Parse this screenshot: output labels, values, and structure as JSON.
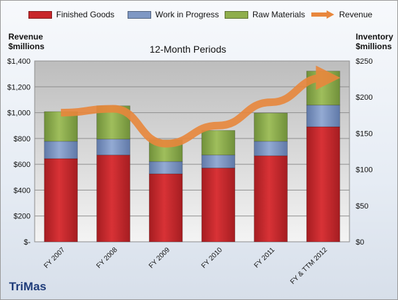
{
  "legend": {
    "finished_goods": "Finished Goods",
    "work_in_progress": "Work in Progress",
    "raw_materials": "Raw Materials",
    "revenue": "Revenue"
  },
  "left_axis_title": [
    "Revenue",
    "$millions"
  ],
  "right_axis_title": [
    "Inventory",
    "$millions"
  ],
  "brand": "TriMas",
  "colors": {
    "finished_goods": "#c8272b",
    "work_in_progress": "#7f98c4",
    "raw_materials": "#8fae4c",
    "revenue": "#e8873c"
  },
  "chart_data": {
    "type": "bar",
    "stacked": true,
    "title": "12-Month Periods",
    "categories": [
      "FY 2007",
      "FY 2008",
      "FY 2009",
      "FY 2010",
      "FY 2011",
      "FY & TTM 2012"
    ],
    "series": [
      {
        "name": "Finished Goods",
        "axis": "right",
        "values": [
          115,
          120,
          94,
          102,
          119,
          159
        ]
      },
      {
        "name": "Work in Progress",
        "axis": "right",
        "values": [
          24,
          22,
          17,
          18,
          20,
          30
        ]
      },
      {
        "name": "Raw Materials",
        "axis": "right",
        "values": [
          41,
          46,
          30,
          34,
          39,
          47
        ]
      },
      {
        "name": "Revenue",
        "type": "line",
        "axis": "left",
        "values": [
          1000,
          1030,
          760,
          900,
          1080,
          1270
        ]
      }
    ],
    "left_axis": {
      "ylim": [
        0,
        1400
      ],
      "ticks": [
        0,
        200,
        400,
        600,
        800,
        1000,
        1200,
        1400
      ],
      "tick_labels": [
        "$-",
        "$200",
        "$400",
        "$600",
        "$800",
        "$1,000",
        "$1,200",
        "$1,400"
      ]
    },
    "right_axis": {
      "ylim": [
        0,
        250
      ],
      "ticks": [
        0,
        50,
        100,
        150,
        200,
        250
      ],
      "tick_labels": [
        "$0",
        "$50",
        "$100",
        "$150",
        "$200",
        "$250"
      ]
    },
    "grid": true,
    "legend_position": "top"
  }
}
